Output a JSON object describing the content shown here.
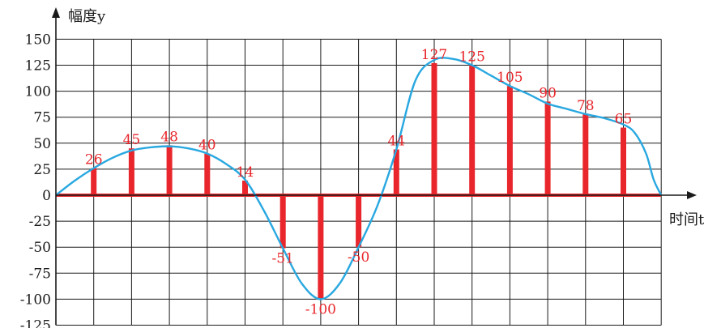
{
  "chart_data": {
    "type": "bar",
    "ylabel": "幅度y",
    "xlabel": "时间t",
    "yticks": [
      150,
      125,
      100,
      75,
      50,
      25,
      0,
      -25,
      -50,
      -75,
      -100,
      -125
    ],
    "ylim": [
      -125,
      150
    ],
    "x": [
      1,
      2,
      3,
      4,
      5,
      6,
      7,
      8,
      9,
      10,
      11,
      12,
      13,
      14,
      15,
      16
    ],
    "values": [
      26,
      45,
      48,
      40,
      14,
      -51,
      -100,
      -50,
      44,
      127,
      125,
      105,
      90,
      78,
      65
    ],
    "labels": [
      "26",
      "45",
      "48",
      "40",
      "14",
      "-51",
      "-100",
      "-50",
      "44",
      "127",
      "125",
      "105",
      "90",
      "78",
      "65"
    ],
    "curve": {
      "x": [
        0,
        0.5,
        1,
        1.5,
        2,
        2.5,
        3,
        3.5,
        4,
        4.5,
        5,
        5.5,
        6,
        6.5,
        7,
        7.5,
        8,
        8.5,
        9,
        9.5,
        10,
        10.5,
        11,
        11.5,
        12,
        12.5,
        13,
        13.5,
        14,
        14.5,
        15,
        15.3,
        15.6,
        15.8,
        16
      ],
      "y": [
        0,
        14,
        26,
        36,
        43,
        46,
        47,
        45,
        40,
        30,
        15,
        -15,
        -51,
        -85,
        -100,
        -85,
        -50,
        -10,
        44,
        110,
        130,
        131,
        125,
        115,
        105,
        97,
        88,
        83,
        78,
        74,
        68,
        60,
        40,
        15,
        0
      ]
    },
    "grid": true,
    "colors": {
      "bars": "#e8262b",
      "curve": "#29a8e0",
      "labels": "#e8262b",
      "grid": "#1a1a1a"
    }
  }
}
